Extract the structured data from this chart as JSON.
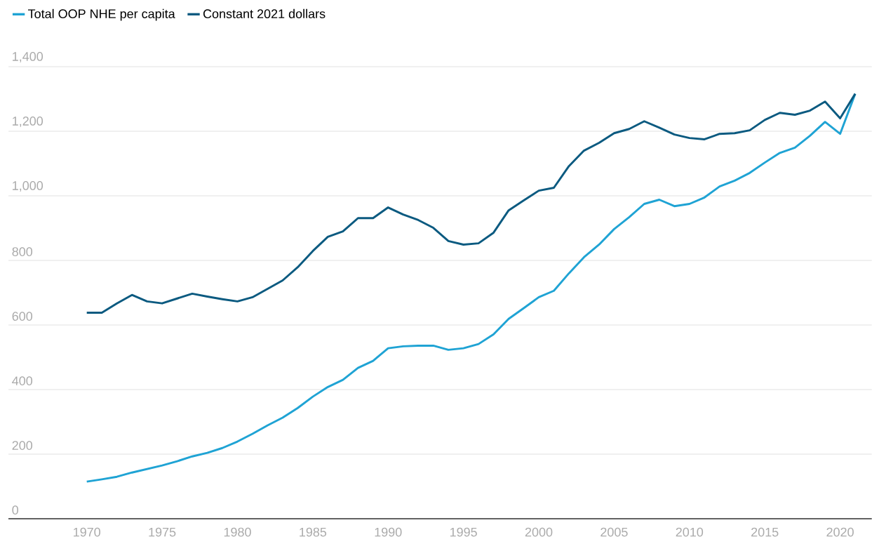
{
  "chart_data": {
    "type": "line",
    "x": [
      1970,
      1971,
      1972,
      1973,
      1974,
      1975,
      1976,
      1977,
      1978,
      1979,
      1980,
      1981,
      1982,
      1983,
      1984,
      1985,
      1986,
      1987,
      1988,
      1989,
      1990,
      1991,
      1992,
      1993,
      1994,
      1995,
      1996,
      1997,
      1998,
      1999,
      2000,
      2001,
      2002,
      2003,
      2004,
      2005,
      2006,
      2007,
      2008,
      2009,
      2010,
      2011,
      2012,
      2013,
      2014,
      2015,
      2016,
      2017,
      2018,
      2019,
      2020,
      2021
    ],
    "series": [
      {
        "name": "Total OOP NHE per capita",
        "color": "#1fa3d4",
        "values": [
          115,
          122,
          130,
          143,
          154,
          165,
          178,
          193,
          204,
          219,
          239,
          263,
          289,
          313,
          343,
          378,
          408,
          430,
          467,
          489,
          528,
          534,
          536,
          536,
          523,
          528,
          541,
          571,
          619,
          652,
          686,
          706,
          760,
          810,
          849,
          897,
          934,
          975,
          988,
          968,
          975,
          995,
          1029,
          1047,
          1071,
          1103,
          1133,
          1149,
          1186,
          1229,
          1192,
          1316
        ]
      },
      {
        "name": "Constant 2021 dollars",
        "color": "#0b5a80",
        "values": [
          638,
          638,
          667,
          693,
          673,
          667,
          682,
          697,
          688,
          680,
          673,
          686,
          712,
          738,
          779,
          829,
          873,
          890,
          931,
          931,
          964,
          942,
          925,
          901,
          860,
          849,
          853,
          886,
          955,
          986,
          1016,
          1025,
          1092,
          1140,
          1164,
          1194,
          1207,
          1231,
          1211,
          1190,
          1179,
          1175,
          1192,
          1194,
          1203,
          1235,
          1257,
          1251,
          1264,
          1292,
          1240,
          1316
        ]
      }
    ],
    "xlim": [
      1964.8,
      2022.1
    ],
    "xticks": [
      1970,
      1975,
      1980,
      1985,
      1990,
      1995,
      2000,
      2005,
      2010,
      2015,
      2020
    ],
    "ylim": [
      0,
      1400
    ],
    "yticks": [
      0,
      200,
      400,
      600,
      800,
      {
        "value": 1000,
        "label": "1,000"
      },
      {
        "value": 1200,
        "label": "1,200"
      },
      {
        "value": 1400,
        "label": "1,400"
      }
    ],
    "grid": "y",
    "legend": "top left",
    "marker": "none",
    "line_style": "solid"
  }
}
